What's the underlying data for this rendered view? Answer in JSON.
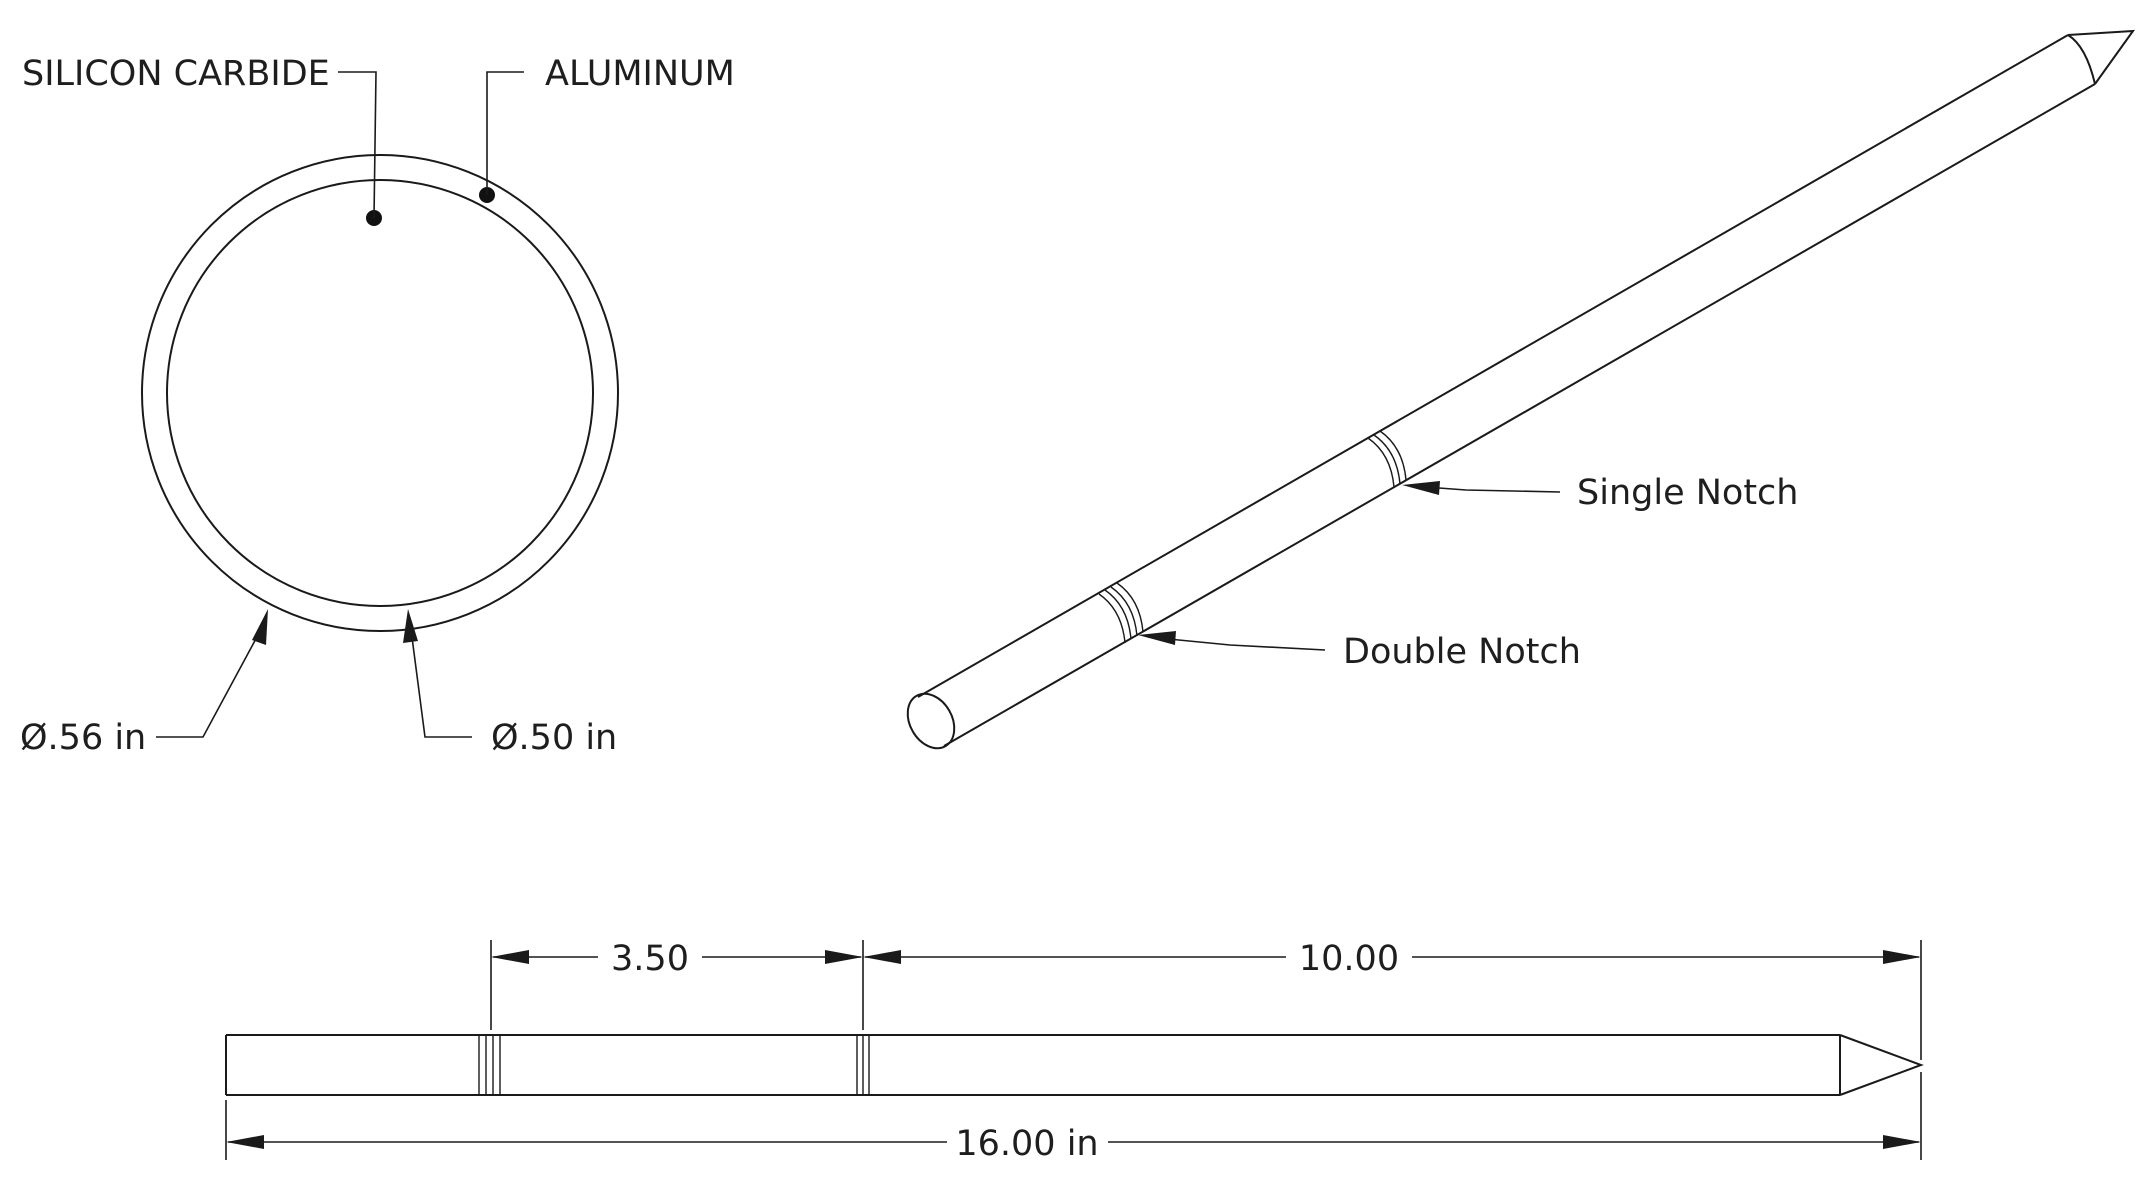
{
  "cross_section": {
    "material_core": "SILICON CARBIDE",
    "material_jacket": "ALUMINUM",
    "outer_diameter": "Ø.56 in",
    "inner_diameter": "Ø.50 in"
  },
  "isometric": {
    "single_notch": "Single Notch",
    "double_notch": "Double Notch"
  },
  "side_view": {
    "dim_notch_spacing": "3.50",
    "dim_notch_to_tip": "10.00",
    "dim_total_length": "16.00 in"
  }
}
